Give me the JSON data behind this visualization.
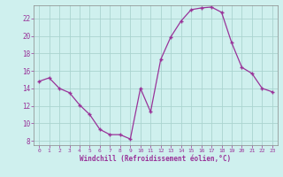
{
  "x": [
    0,
    1,
    2,
    3,
    4,
    5,
    6,
    7,
    8,
    9,
    10,
    11,
    12,
    13,
    14,
    15,
    16,
    17,
    18,
    19,
    20,
    21,
    22,
    23
  ],
  "y": [
    14.8,
    15.2,
    14.0,
    13.5,
    12.1,
    11.0,
    9.3,
    8.7,
    8.7,
    8.2,
    14.0,
    11.3,
    17.3,
    19.9,
    21.7,
    23.0,
    23.2,
    23.3,
    22.7,
    19.2,
    16.4,
    15.7,
    14.0,
    13.6
  ],
  "line_color": "#993399",
  "marker": "+",
  "marker_size": 3,
  "bg_color": "#cff0ee",
  "grid_color": "#aad4d0",
  "xlabel": "Windchill (Refroidissement éolien,°C)",
  "ylim": [
    7.5,
    23.5
  ],
  "yticks": [
    8,
    10,
    12,
    14,
    16,
    18,
    20,
    22
  ],
  "xticks": [
    0,
    1,
    2,
    3,
    4,
    5,
    6,
    7,
    8,
    9,
    10,
    11,
    12,
    13,
    14,
    15,
    16,
    17,
    18,
    19,
    20,
    21,
    22,
    23
  ]
}
